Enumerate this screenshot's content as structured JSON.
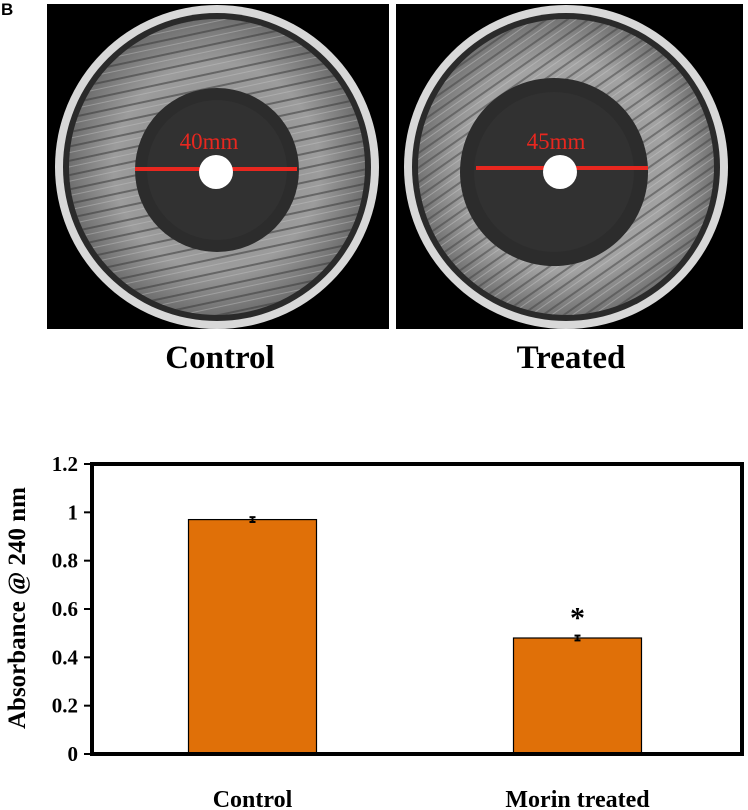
{
  "panel_letter": "B",
  "plates": [
    {
      "caption": "Control",
      "zone_label": "40mm"
    },
    {
      "caption": "Treated",
      "zone_label": "45mm"
    }
  ],
  "colors": {
    "bar": "#e07008",
    "measure_line": "#e8271f",
    "axis": "#000000"
  },
  "chart_data": {
    "type": "bar",
    "categories": [
      "Control",
      "Morin treated"
    ],
    "values": [
      0.97,
      0.48
    ],
    "errors": [
      0.01,
      0.01
    ],
    "annotations": [
      "",
      "*"
    ],
    "ylabel": "Absorbance @ 240 nm",
    "xlabel": "",
    "ylim": [
      0,
      1.2
    ],
    "yticks": [
      0,
      0.2,
      0.4,
      0.6,
      0.8,
      1,
      1.2
    ],
    "ytick_labels": [
      "0",
      "0.2",
      "0.4",
      "0.6",
      "0.8",
      "1",
      "1.2"
    ],
    "grid": false
  }
}
